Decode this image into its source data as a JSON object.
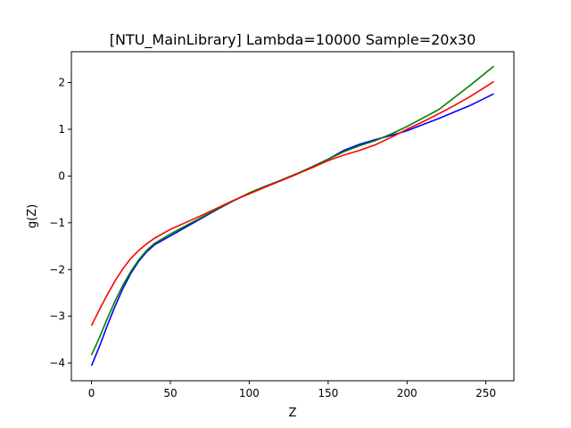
{
  "chart_data": {
    "type": "line",
    "title": "[NTU_MainLibrary] Lambda=10000 Sample=20x30",
    "xlabel": "Z",
    "ylabel": "g(Z)",
    "xlim": [
      -12.75,
      267.75
    ],
    "ylim": [
      -4.38,
      2.66
    ],
    "xticks": [
      0,
      50,
      100,
      150,
      200,
      250
    ],
    "yticks": [
      -4,
      -3,
      -2,
      -1,
      0,
      1,
      2
    ],
    "grid": false,
    "legend": "none",
    "series": [
      {
        "color": "#0000ff",
        "x": [
          0,
          5,
          10,
          15,
          20,
          25,
          30,
          35,
          40,
          50,
          60,
          70,
          80,
          90,
          100,
          110,
          120,
          130,
          140,
          150,
          160,
          170,
          180,
          190,
          200,
          210,
          220,
          230,
          240,
          255
        ],
        "y": [
          -4.06,
          -3.65,
          -3.2,
          -2.78,
          -2.4,
          -2.08,
          -1.82,
          -1.62,
          -1.47,
          -1.28,
          -1.09,
          -0.9,
          -0.71,
          -0.53,
          -0.37,
          -0.23,
          -0.1,
          0.04,
          0.2,
          0.36,
          0.55,
          0.68,
          0.78,
          0.87,
          0.97,
          1.1,
          1.23,
          1.37,
          1.51,
          1.76
        ]
      },
      {
        "color": "#008000",
        "x": [
          0,
          5,
          10,
          15,
          20,
          25,
          30,
          35,
          40,
          50,
          60,
          70,
          80,
          90,
          100,
          110,
          120,
          130,
          140,
          150,
          160,
          170,
          180,
          190,
          200,
          210,
          220,
          230,
          240,
          255
        ],
        "y": [
          -3.83,
          -3.46,
          -3.05,
          -2.67,
          -2.33,
          -2.04,
          -1.79,
          -1.59,
          -1.44,
          -1.24,
          -1.06,
          -0.88,
          -0.7,
          -0.53,
          -0.36,
          -0.22,
          -0.09,
          0.05,
          0.2,
          0.36,
          0.52,
          0.65,
          0.76,
          0.9,
          1.06,
          1.24,
          1.42,
          1.68,
          1.94,
          2.35
        ]
      },
      {
        "color": "#ff0000",
        "x": [
          0,
          5,
          10,
          15,
          20,
          25,
          30,
          35,
          40,
          50,
          60,
          70,
          80,
          90,
          100,
          110,
          120,
          130,
          140,
          150,
          160,
          170,
          180,
          190,
          200,
          210,
          220,
          230,
          240,
          255
        ],
        "y": [
          -3.2,
          -2.86,
          -2.54,
          -2.24,
          -1.98,
          -1.76,
          -1.59,
          -1.45,
          -1.33,
          -1.14,
          -0.99,
          -0.84,
          -0.68,
          -0.52,
          -0.38,
          -0.24,
          -0.1,
          0.04,
          0.18,
          0.33,
          0.45,
          0.55,
          0.67,
          0.83,
          1.0,
          1.16,
          1.33,
          1.51,
          1.7,
          2.02
        ]
      }
    ]
  }
}
